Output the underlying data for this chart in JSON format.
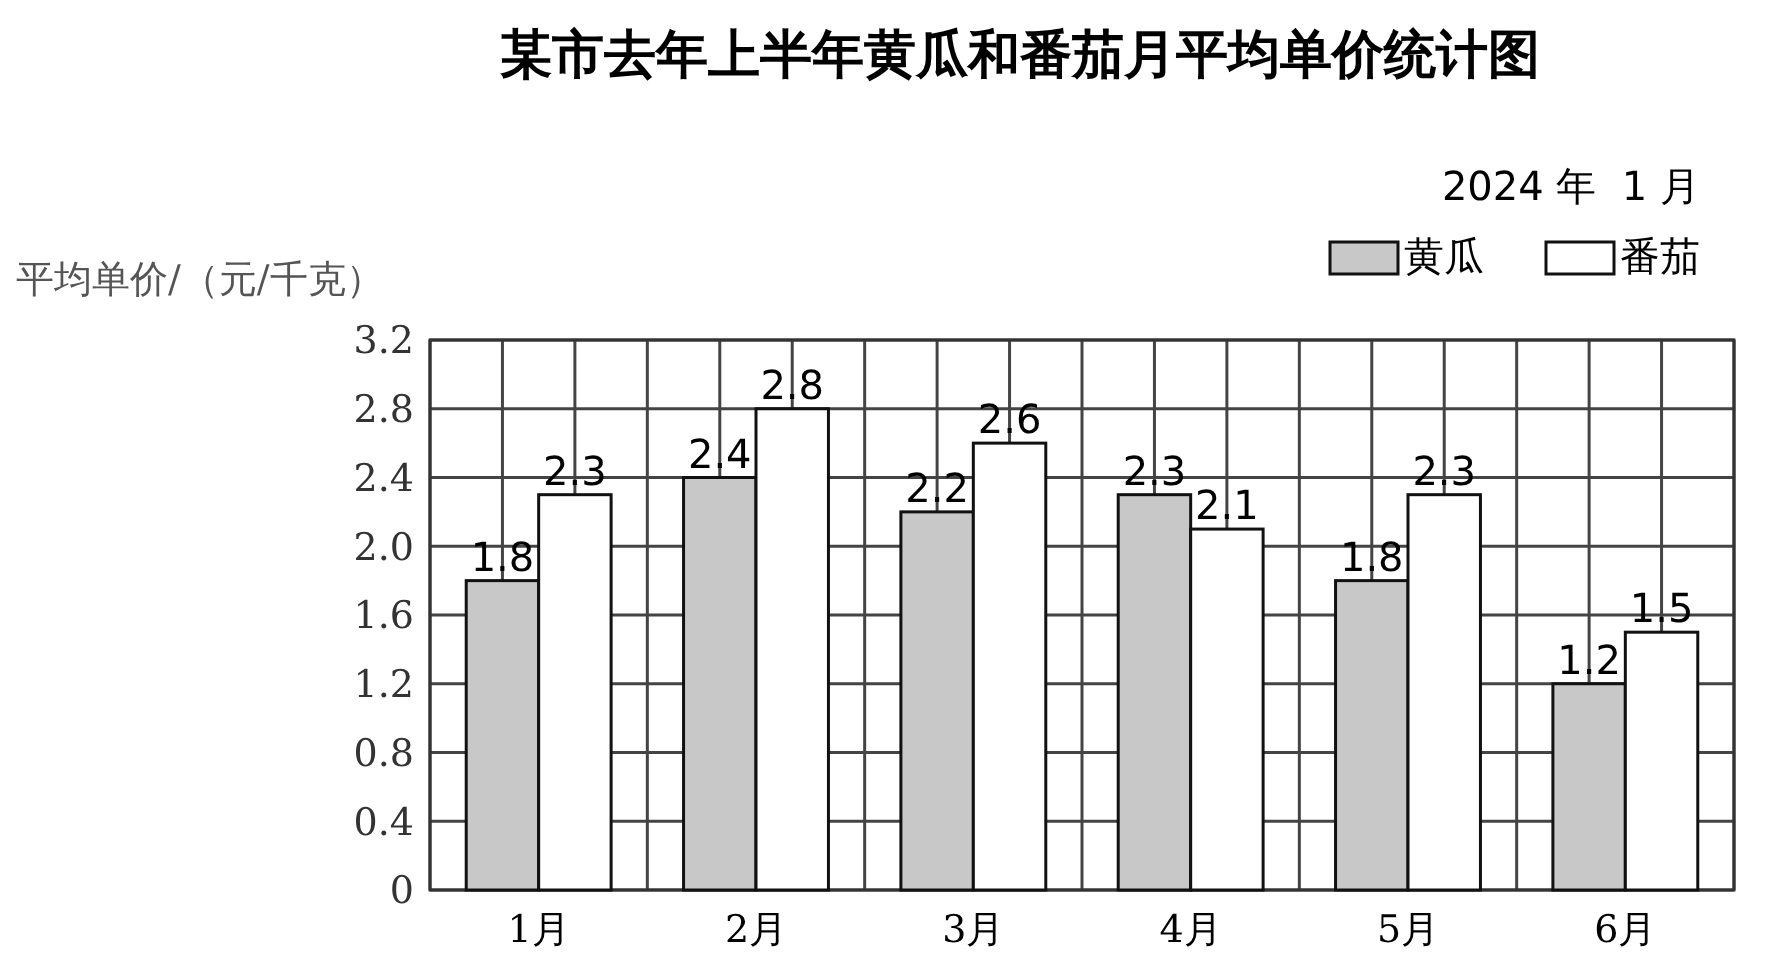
{
  "chart_data": {
    "type": "bar",
    "title": "某市去年上半年黄瓜和番茄月平均单价统计图",
    "ylabel": "平均单价/（元/千克）",
    "annotations": [
      "2024 年  1 月"
    ],
    "categories": [
      "1月",
      "2月",
      "3月",
      "4月",
      "5月",
      "6月"
    ],
    "series": [
      {
        "name": "黄瓜",
        "color": "#c8c8c8",
        "values": [
          1.8,
          2.4,
          2.2,
          2.3,
          1.8,
          1.2
        ]
      },
      {
        "name": "番茄",
        "color": "#ffffff",
        "values": [
          2.3,
          2.8,
          2.6,
          2.1,
          2.3,
          1.5
        ]
      }
    ],
    "ylim": [
      0,
      3.2
    ],
    "yticks": [
      {
        "value": 0,
        "label": "0"
      },
      0.4,
      0.8,
      1.2,
      1.6,
      {
        "value": 2,
        "label": "2.0"
      },
      2.4,
      2.8,
      3.2
    ],
    "grid": true,
    "legend": "top right",
    "data_labels": true
  }
}
